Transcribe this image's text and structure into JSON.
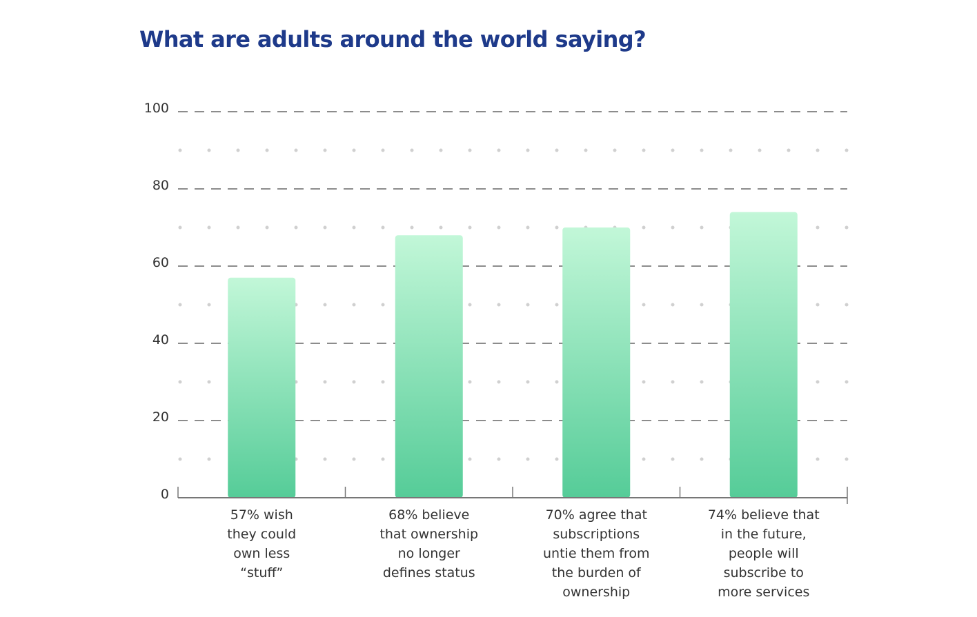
{
  "chart_data": {
    "type": "bar",
    "title": "What are adults around the world saying?",
    "xlabel": "",
    "ylabel": "",
    "ylim": [
      0,
      100
    ],
    "yticks": [
      "0",
      "20",
      "40",
      "60",
      "80",
      "100"
    ],
    "grid": true,
    "categories": [
      [
        "57% wish",
        "they could",
        "own less",
        "“stuff”"
      ],
      [
        "68% believe",
        "that ownership",
        "no longer",
        "defines status"
      ],
      [
        "70% agree that",
        "subscriptions",
        "untie them from",
        "the burden of",
        "ownership"
      ],
      [
        "74% believe that",
        "in the future,",
        "people will",
        "subscribe to",
        "more services"
      ]
    ],
    "values": [
      57,
      68,
      70,
      74
    ]
  },
  "colors": {
    "title": "#1e3a8a",
    "bar_top": "#c2f7d8",
    "bar_bottom": "#55cc98",
    "grid_dash": "#666666",
    "grid_dot": "#d0d0d0",
    "axis": "#777777",
    "text": "#333333"
  }
}
